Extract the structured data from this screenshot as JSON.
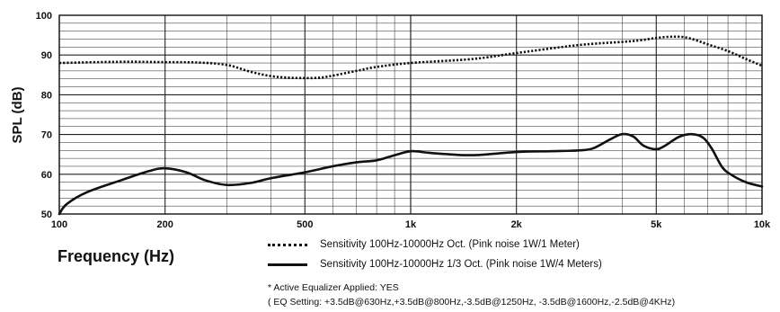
{
  "chart_data": {
    "type": "line",
    "title": "",
    "xlabel": "Frequency (Hz)",
    "ylabel": "SPL (dB)",
    "x_scale": "log",
    "xlim": [
      100,
      10000
    ],
    "ylim": [
      50,
      100
    ],
    "grid": true,
    "x_tick_values": [
      100,
      200,
      500,
      1000,
      2000,
      5000,
      10000
    ],
    "x_tick_labels": [
      "100",
      "200",
      "500",
      "1k",
      "2k",
      "5k",
      "10k"
    ],
    "y_ticks": [
      50,
      60,
      70,
      80,
      90,
      100
    ],
    "series": [
      {
        "name": "Sensitivity 100Hz-10000Hz Oct. (Pink noise 1W/1 Meter)",
        "style": "dotted",
        "color": "#111111",
        "x": [
          100,
          150,
          200,
          250,
          300,
          350,
          400,
          450,
          500,
          550,
          600,
          700,
          800,
          1000,
          1500,
          2000,
          3000,
          4000,
          4500,
          5000,
          5500,
          6000,
          6500,
          7000,
          8000,
          9000,
          10000
        ],
        "y": [
          88,
          88.3,
          88.2,
          88.1,
          87.5,
          85.8,
          84.7,
          84.3,
          84.2,
          84.3,
          84.8,
          86,
          87,
          88,
          89,
          90.5,
          92.5,
          93.3,
          93.7,
          94.3,
          94.6,
          94.5,
          93.7,
          92.7,
          91,
          89,
          87.3
        ]
      },
      {
        "name": "Sensitivity 100Hz-10000Hz 1/3 Oct. (Pink noise 1W/4 Meters)",
        "style": "solid",
        "color": "#111111",
        "x": [
          100,
          105,
          120,
          150,
          180,
          200,
          230,
          260,
          300,
          350,
          400,
          500,
          600,
          700,
          800,
          900,
          1000,
          1100,
          1200,
          1500,
          2000,
          2500,
          3000,
          3300,
          3700,
          4000,
          4300,
          4600,
          5000,
          5300,
          5800,
          6300,
          6800,
          7200,
          7700,
          8200,
          9000,
          10000
        ],
        "y": [
          50,
          52.5,
          55.5,
          58.5,
          60.8,
          61.5,
          60.5,
          58.5,
          57.3,
          57.8,
          59,
          60.5,
          62,
          63,
          63.5,
          64.8,
          65.8,
          65.5,
          65.2,
          64.8,
          65.6,
          65.8,
          66,
          66.5,
          68.8,
          70.1,
          69.5,
          67.2,
          66.3,
          67.2,
          69.4,
          70.1,
          69.2,
          66.4,
          61.8,
          59.8,
          58,
          56.9
        ]
      }
    ],
    "legend_position": "bottom-center"
  },
  "legend": [
    {
      "label": "Sensitivity 100Hz-10000Hz Oct. (Pink noise 1W/1 Meter)",
      "style": "dotted"
    },
    {
      "label": "Sensitivity 100Hz-10000Hz 1/3 Oct. (Pink noise 1W/4 Meters)",
      "style": "solid"
    }
  ],
  "notes": {
    "eq_applied": "* Active Equalizer Applied: YES",
    "eq_setting": "( EQ Setting: +3.5dB@630Hz,+3.5dB@800Hz,-3.5dB@1250Hz, -3.5dB@1600Hz,-2.5dB@4KHz)"
  }
}
